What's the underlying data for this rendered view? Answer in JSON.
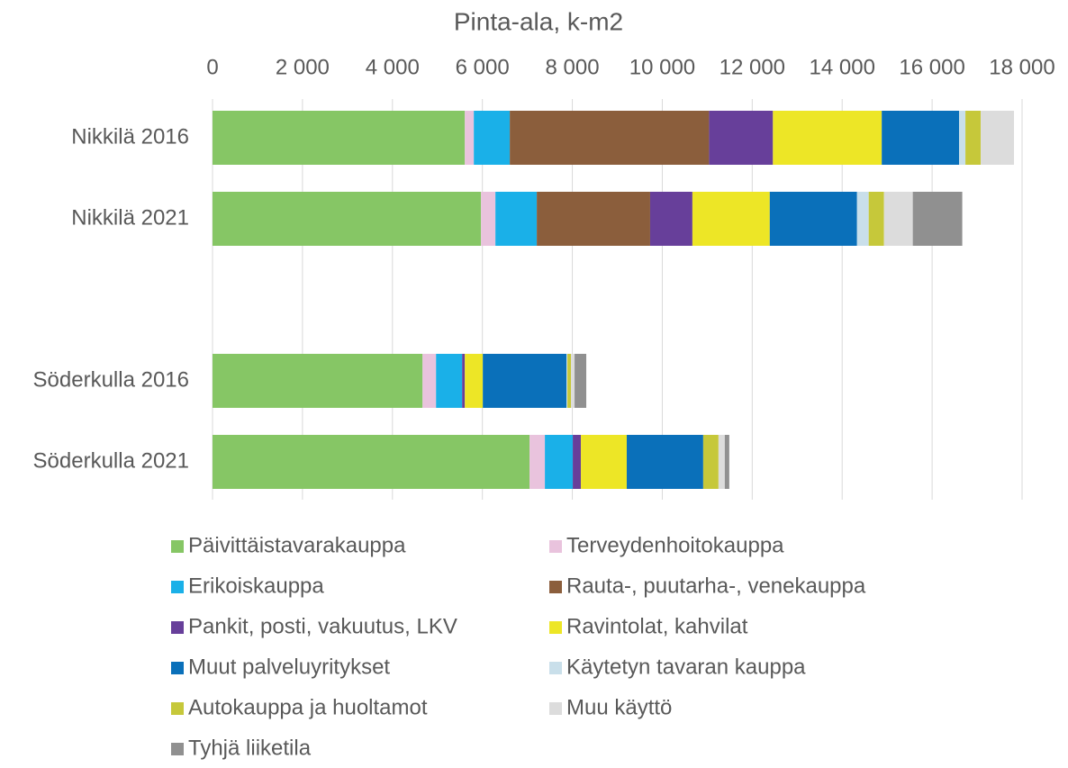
{
  "chart_data": {
    "type": "stacked-barh",
    "title": "Pinta-ala, k-m2",
    "categories": [
      "Nikkilä 2016",
      "Nikkilä 2021",
      null,
      "Söderkulla 2016",
      "Söderkulla 2021"
    ],
    "xlim": [
      0,
      18000
    ],
    "xticks": [
      0,
      {
        "value": 2000,
        "label": "2 000"
      },
      {
        "value": 4000,
        "label": "4 000"
      },
      {
        "value": 6000,
        "label": "6 000"
      },
      {
        "value": 8000,
        "label": "8 000"
      },
      {
        "value": 10000,
        "label": "10 000"
      },
      {
        "value": 12000,
        "label": "12 000"
      },
      {
        "value": 14000,
        "label": "14 000"
      },
      {
        "value": 16000,
        "label": "16 000"
      },
      {
        "value": 18000,
        "label": "18 000"
      }
    ],
    "grid": true,
    "series": [
      {
        "name": "Päivittäistavarakauppa",
        "color": "#86c665",
        "values": [
          5610,
          5970,
          null,
          4670,
          7050
        ]
      },
      {
        "name": "Terveydenhoitokauppa",
        "color": "#e9c3dd",
        "values": [
          200,
          320,
          null,
          300,
          340
        ]
      },
      {
        "name": "Erikoiskauppa",
        "color": "#1ab0e8",
        "values": [
          800,
          920,
          null,
          580,
          620
        ]
      },
      {
        "name": "Rauta-, puutarha-, venekauppa",
        "color": "#8b5e3c",
        "values": [
          4430,
          2520,
          null,
          0,
          0
        ]
      },
      {
        "name": "Pankit, posti, vakuutus, LKV",
        "color": "#673f9a",
        "values": [
          1420,
          940,
          null,
          60,
          180
        ]
      },
      {
        "name": "Ravintolat, kahvilat",
        "color": "#ede626",
        "values": [
          2420,
          1720,
          null,
          400,
          1020
        ]
      },
      {
        "name": "Muut palveluyritykset",
        "color": "#0a70ba",
        "values": [
          1720,
          1940,
          null,
          1860,
          1700
        ]
      },
      {
        "name": "Käytetyn tavaran kauppa",
        "color": "#c9dfea",
        "values": [
          140,
          260,
          null,
          20,
          0
        ]
      },
      {
        "name": "Autokauppa ja huoltamot",
        "color": "#c6c83a",
        "values": [
          340,
          340,
          null,
          80,
          340
        ]
      },
      {
        "name": "Muu käyttö",
        "color": "#dcdcdc",
        "values": [
          740,
          640,
          null,
          80,
          140
        ]
      },
      {
        "name": "Tyhjä liiketila",
        "color": "#909090",
        "values": [
          0,
          1100,
          null,
          260,
          100
        ]
      }
    ]
  }
}
